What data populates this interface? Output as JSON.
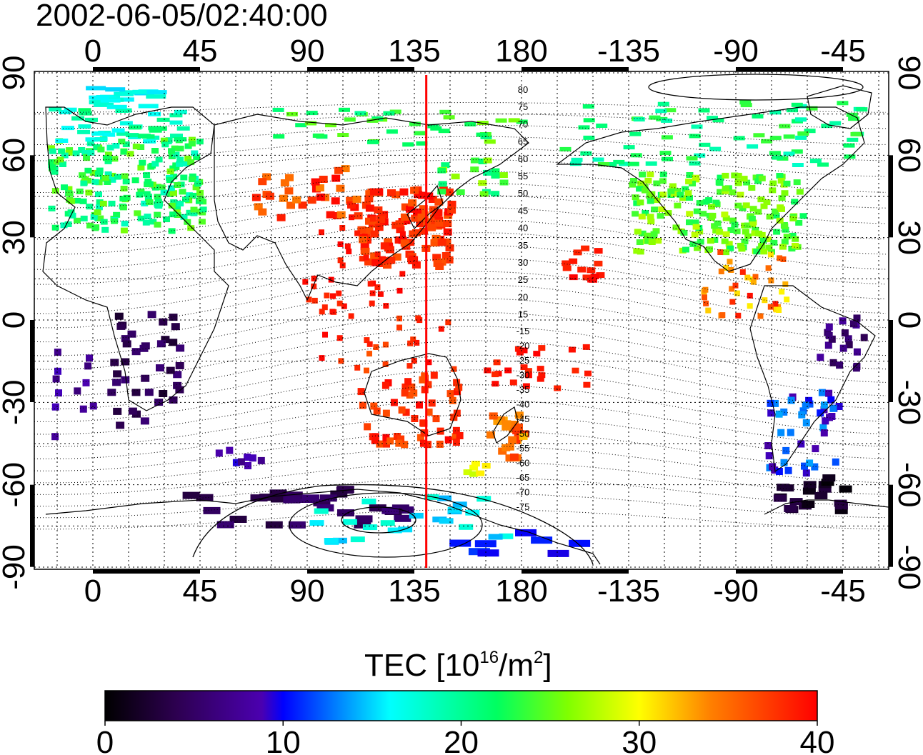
{
  "title": "2002-06-05/02:40:00",
  "lon_ticks": [
    0,
    45,
    90,
    135,
    180,
    -135,
    -90,
    -45
  ],
  "lat_ticks": [
    90,
    60,
    30,
    0,
    -30,
    -60,
    -90
  ],
  "magnetic_lat_labels_north": [
    "80",
    "75",
    "70",
    "65",
    "60",
    "55",
    "50",
    "45",
    "40",
    "35",
    "30",
    "25",
    "20",
    "15"
  ],
  "magnetic_lat_labels_south": [
    "-15",
    "-20",
    "-25",
    "-30",
    "-35",
    "-40",
    "-45",
    "-50",
    "-55",
    "-60",
    "-65",
    "-70",
    "-75"
  ],
  "colorbar": {
    "label_main": "TEC  [10",
    "label_sup1": "16",
    "label_mid": "/m",
    "label_sup2": "2",
    "label_end": "]",
    "ticks": [
      "0",
      "10",
      "20",
      "30",
      "40"
    ],
    "min": 0,
    "max": 40
  },
  "highlight_longitude": 140,
  "colors": {
    "highlight_line": "#ff0000",
    "coast": "#000000",
    "grid": "#000000"
  }
}
